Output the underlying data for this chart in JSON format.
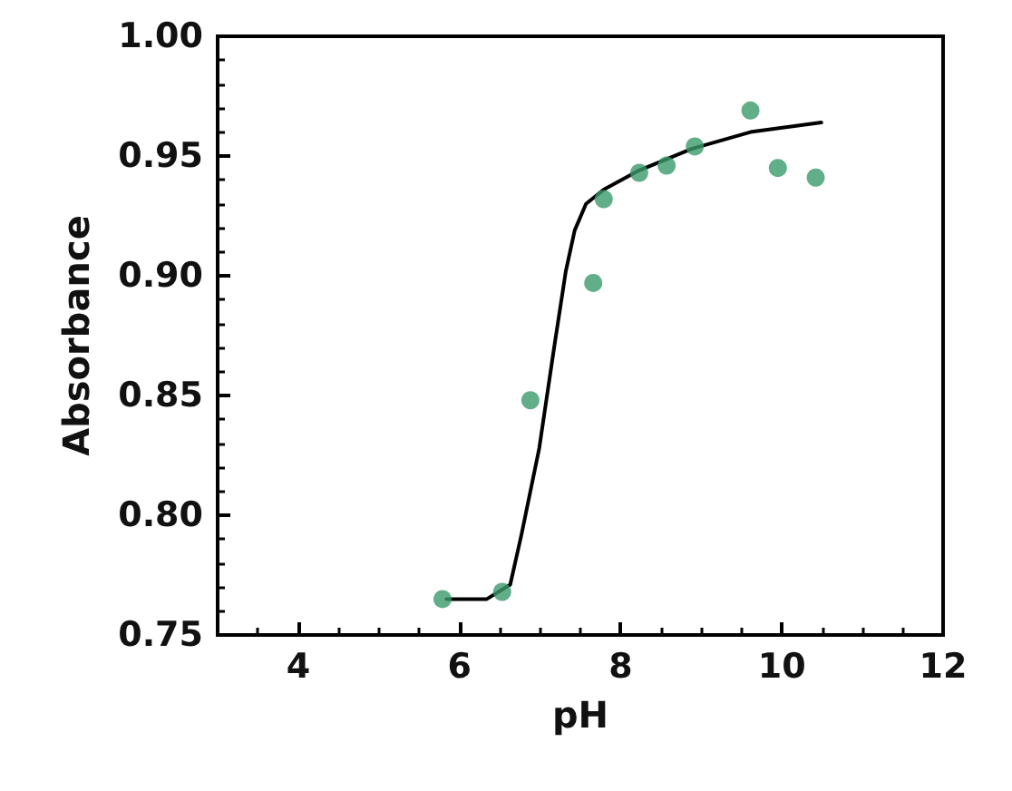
{
  "chart_data": {
    "type": "scatter",
    "xlabel": "pH",
    "ylabel": "Absorbance",
    "xlim": [
      3,
      12
    ],
    "xticks": [
      4,
      6,
      8,
      10,
      12
    ],
    "ylim": [
      0.75,
      1.0
    ],
    "yticks": [
      {
        "value": 0.75,
        "label": "0.75"
      },
      {
        "value": 0.8,
        "label": "0.80"
      },
      {
        "value": 0.85,
        "label": "0.85"
      },
      {
        "value": 0.9,
        "label": "0.90"
      },
      {
        "value": 0.95,
        "label": "0.95"
      },
      {
        "value": 1.0,
        "label": "1.00"
      }
    ],
    "grid": false,
    "series": [
      {
        "color": "#3a9a6a",
        "marker": "circle",
        "x": [
          5.79,
          6.53,
          6.88,
          7.66,
          7.79,
          8.23,
          8.57,
          8.92,
          9.61,
          9.95,
          10.42
        ],
        "values": [
          0.765,
          0.768,
          0.848,
          0.897,
          0.932,
          0.943,
          0.946,
          0.954,
          0.969,
          0.945,
          0.941
        ]
      },
      {
        "type": "line",
        "color": "#000000",
        "marker": "none",
        "line_style": "solid",
        "x": [
          5.84,
          6.34,
          6.63,
          6.77,
          6.99,
          7.17,
          7.32,
          7.43,
          7.57,
          7.79,
          8.23,
          8.88,
          9.61,
          10.49
        ],
        "values": [
          0.765,
          0.765,
          0.771,
          0.792,
          0.828,
          0.869,
          0.902,
          0.919,
          0.93,
          0.936,
          0.944,
          0.953,
          0.96,
          0.964
        ]
      }
    ]
  }
}
